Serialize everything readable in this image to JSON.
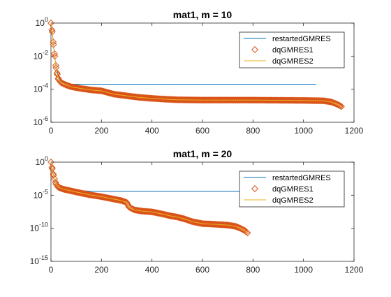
{
  "chart_data": [
    {
      "type": "line",
      "title": "mat1, m = 10",
      "xlabel": "",
      "ylabel": "",
      "yscale": "log",
      "xlim": [
        0,
        1200
      ],
      "ylim": [
        1e-06,
        1
      ],
      "xticks": [
        0,
        200,
        400,
        600,
        800,
        1000,
        1200
      ],
      "xtick_labels": [
        "0",
        "200",
        "400",
        "600",
        "800",
        "1000",
        "1200"
      ],
      "yticks": [
        1e-06,
        0.0001,
        0.01,
        1
      ],
      "ytick_labels": [
        {
          "base": "10",
          "exp": "-6"
        },
        {
          "base": "10",
          "exp": "-4"
        },
        {
          "base": "10",
          "exp": "-2"
        },
        {
          "base": "10",
          "exp": "0"
        }
      ],
      "legend_position": "top-right",
      "series": [
        {
          "name": "restartedGMRES",
          "style": "line",
          "color": "#0072BD",
          "points": [
            [
              0,
              1
            ],
            [
              5,
              0.3
            ],
            [
              10,
              0.05
            ],
            [
              15,
              0.01
            ],
            [
              20,
              0.002
            ],
            [
              30,
              0.0006
            ],
            [
              40,
              0.0003
            ],
            [
              50,
              0.00025
            ],
            [
              60,
              0.00022
            ],
            [
              80,
              0.0002
            ],
            [
              200,
              0.0002
            ],
            [
              600,
              0.0002
            ],
            [
              1050,
              0.0002
            ]
          ]
        },
        {
          "name": "dqGMRES1",
          "style": "marker",
          "color": "#D95319",
          "points": [
            [
              0,
              1
            ],
            [
              5,
              0.3
            ],
            [
              10,
              0.05
            ],
            [
              15,
              0.01
            ],
            [
              20,
              0.002
            ],
            [
              25,
              0.0008
            ],
            [
              30,
              0.0004
            ],
            [
              40,
              0.00025
            ],
            [
              60,
              0.00018
            ],
            [
              80,
              0.00014
            ],
            [
              120,
              0.00011
            ],
            [
              160,
              9e-05
            ],
            [
              200,
              8e-05
            ],
            [
              250,
              5e-05
            ],
            [
              300,
              4e-05
            ],
            [
              350,
              3.2e-05
            ],
            [
              400,
              2.8e-05
            ],
            [
              450,
              2.5e-05
            ],
            [
              500,
              2.3e-05
            ],
            [
              600,
              2.2e-05
            ],
            [
              800,
              2.2e-05
            ],
            [
              1000,
              2.1e-05
            ],
            [
              1080,
              2e-05
            ],
            [
              1110,
              1.7e-05
            ],
            [
              1130,
              1.3e-05
            ],
            [
              1145,
              1e-05
            ],
            [
              1150,
              9e-06
            ]
          ]
        },
        {
          "name": "dqGMRES2",
          "style": "line",
          "color": "#EDB120",
          "points": [
            [
              0,
              1
            ],
            [
              5,
              0.3
            ],
            [
              10,
              0.05
            ],
            [
              15,
              0.01
            ],
            [
              20,
              0.002
            ],
            [
              25,
              0.0008
            ],
            [
              30,
              0.0004
            ],
            [
              40,
              0.00025
            ],
            [
              60,
              0.00018
            ],
            [
              80,
              0.00014
            ],
            [
              120,
              0.00011
            ],
            [
              160,
              9e-05
            ],
            [
              200,
              8e-05
            ],
            [
              250,
              5e-05
            ],
            [
              300,
              4e-05
            ],
            [
              350,
              3.2e-05
            ],
            [
              400,
              2.8e-05
            ],
            [
              450,
              2.5e-05
            ],
            [
              500,
              2.3e-05
            ],
            [
              600,
              2.2e-05
            ],
            [
              800,
              2.2e-05
            ],
            [
              1000,
              2.1e-05
            ],
            [
              1080,
              2e-05
            ],
            [
              1110,
              1.7e-05
            ],
            [
              1130,
              1.3e-05
            ],
            [
              1145,
              1e-05
            ],
            [
              1150,
              9e-06
            ]
          ]
        }
      ]
    },
    {
      "type": "line",
      "title": "mat1, m = 20",
      "xlabel": "",
      "ylabel": "",
      "yscale": "log",
      "xlim": [
        0,
        1200
      ],
      "ylim": [
        1e-15,
        1
      ],
      "xticks": [
        0,
        200,
        400,
        600,
        800,
        1000,
        1200
      ],
      "xtick_labels": [
        "0",
        "200",
        "400",
        "600",
        "800",
        "1000",
        "1200"
      ],
      "yticks": [
        1e-15,
        1e-10,
        1e-05,
        1
      ],
      "ytick_labels": [
        {
          "base": "10",
          "exp": "-15"
        },
        {
          "base": "10",
          "exp": "-10"
        },
        {
          "base": "10",
          "exp": "-5"
        },
        {
          "base": "10",
          "exp": "0"
        }
      ],
      "legend_position": "top-right",
      "series": [
        {
          "name": "restartedGMRES",
          "style": "line",
          "color": "#0072BD",
          "points": [
            [
              0,
              1
            ],
            [
              5,
              0.1
            ],
            [
              10,
              0.01
            ],
            [
              20,
              0.0005
            ],
            [
              30,
              0.00012
            ],
            [
              40,
              8e-05
            ],
            [
              60,
              6e-05
            ],
            [
              100,
              5e-05
            ],
            [
              160,
              4e-05
            ],
            [
              200,
              4e-05
            ],
            [
              600,
              4e-05
            ],
            [
              1050,
              4e-05
            ]
          ]
        },
        {
          "name": "dqGMRES1",
          "style": "marker",
          "color": "#D95319",
          "points": [
            [
              0,
              1
            ],
            [
              5,
              0.1
            ],
            [
              10,
              0.01
            ],
            [
              20,
              0.0005
            ],
            [
              30,
              0.00015
            ],
            [
              50,
              8e-05
            ],
            [
              100,
              3e-05
            ],
            [
              150,
              1.2e-05
            ],
            [
              200,
              6e-06
            ],
            [
              240,
              3e-06
            ],
            [
              280,
              1.5e-06
            ],
            [
              300,
              8e-07
            ],
            [
              310,
              1.5e-07
            ],
            [
              330,
              6e-08
            ],
            [
              360,
              4e-08
            ],
            [
              400,
              3e-08
            ],
            [
              440,
              1.5e-08
            ],
            [
              470,
              8e-09
            ],
            [
              500,
              5e-09
            ],
            [
              530,
              2.5e-09
            ],
            [
              560,
              1e-09
            ],
            [
              600,
              5e-10
            ],
            [
              650,
              4e-10
            ],
            [
              700,
              3e-10
            ],
            [
              730,
              2e-10
            ],
            [
              750,
              1e-10
            ],
            [
              770,
              4e-11
            ],
            [
              778,
              2e-11
            ]
          ]
        },
        {
          "name": "dqGMRES2",
          "style": "line",
          "color": "#EDB120",
          "points": [
            [
              0,
              1
            ],
            [
              5,
              0.1
            ],
            [
              10,
              0.01
            ],
            [
              20,
              0.0005
            ],
            [
              30,
              0.00015
            ],
            [
              50,
              8e-05
            ],
            [
              100,
              3e-05
            ],
            [
              150,
              1.2e-05
            ],
            [
              200,
              6e-06
            ],
            [
              240,
              3e-06
            ],
            [
              280,
              1.5e-06
            ],
            [
              300,
              8e-07
            ],
            [
              310,
              1.5e-07
            ],
            [
              330,
              6e-08
            ],
            [
              360,
              4e-08
            ],
            [
              400,
              3e-08
            ],
            [
              440,
              1.5e-08
            ],
            [
              470,
              8e-09
            ],
            [
              500,
              5e-09
            ],
            [
              530,
              2.5e-09
            ],
            [
              560,
              1e-09
            ],
            [
              600,
              5e-10
            ],
            [
              650,
              4e-10
            ],
            [
              700,
              3e-10
            ],
            [
              730,
              2e-10
            ],
            [
              750,
              1e-10
            ],
            [
              770,
              4e-11
            ],
            [
              778,
              2e-11
            ]
          ]
        }
      ]
    }
  ]
}
